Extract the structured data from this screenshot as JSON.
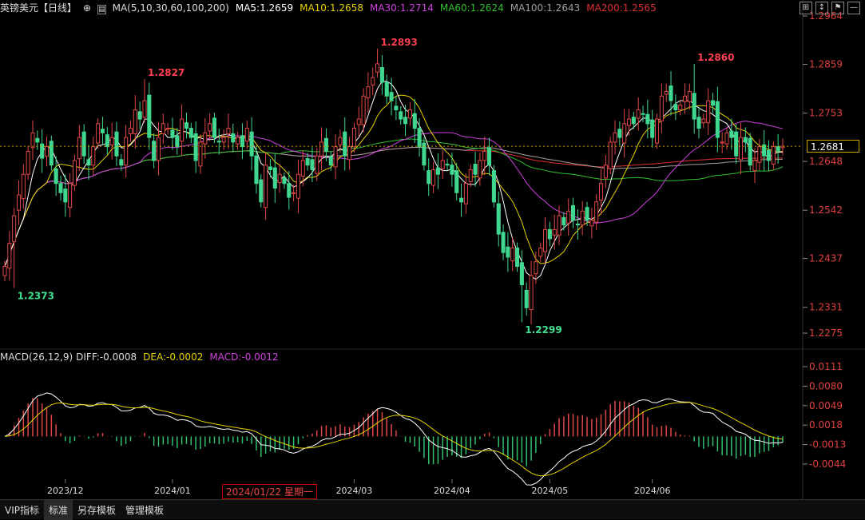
{
  "header": {
    "symbol": "英镑美元",
    "period": "【日线】",
    "ma_label": "MA(5,10,30,60,100,200)",
    "ma_values": [
      {
        "name": "MA5",
        "text": "MA5:1.2659",
        "color": "#ffffff"
      },
      {
        "name": "MA10",
        "text": "MA10:1.2658",
        "color": "#e6d200"
      },
      {
        "name": "MA30",
        "text": "MA30:1.2714",
        "color": "#d040e0"
      },
      {
        "name": "MA60",
        "text": "MA60:1.2624",
        "color": "#30c030"
      },
      {
        "name": "MA100",
        "text": "MA100:1.2643",
        "color": "#a0a0a0"
      },
      {
        "name": "MA200",
        "text": "MA200:1.2565",
        "color": "#e03030"
      }
    ]
  },
  "macd_header": {
    "label": "MACD(26,12,9)",
    "diff": "DIFF:-0.0008",
    "dea": "DEA:-0.0002",
    "macd": "MACD:-0.0012"
  },
  "current_price": "1.2681",
  "cursor_date": "2024/01/22 星期一",
  "tabs": [
    "VIP指标",
    "标准",
    "另存模板",
    "管理模板"
  ],
  "chart_data": {
    "type": "candlestick",
    "price_ticks": [
      "1.2964",
      "1.2859",
      "1.2753",
      "1.2648",
      "1.2542",
      "1.2437",
      "1.2331",
      "1.2275"
    ],
    "price_tick_values": [
      1.2964,
      1.2859,
      1.2753,
      1.2648,
      1.2542,
      1.2437,
      1.2331,
      1.2275
    ],
    "macd_ticks": [
      "0.0111",
      "0.0080",
      "0.0049",
      "0.0018",
      "-0.0013",
      "-0.0044"
    ],
    "macd_tick_values": [
      0.0111,
      0.008,
      0.0049,
      0.0018,
      -0.0013,
      -0.0044
    ],
    "x_labels": [
      "2023/12",
      "2024/01",
      "2024/03",
      "2024/04",
      "2024/05",
      "2024/06"
    ],
    "x_label_positions": [
      13,
      36,
      75,
      96,
      117,
      139
    ],
    "annotations": [
      {
        "index": 2,
        "text": "1.2373",
        "kind": "low"
      },
      {
        "index": 30,
        "text": "1.2827",
        "kind": "high"
      },
      {
        "index": 80,
        "text": "1.2893",
        "kind": "high"
      },
      {
        "index": 111,
        "text": "1.2299",
        "kind": "low"
      },
      {
        "index": 148,
        "text": "1.2860",
        "kind": "high"
      }
    ],
    "closes": [
      1.242,
      1.247,
      1.253,
      1.2575,
      1.262,
      1.267,
      1.271,
      1.269,
      1.2655,
      1.268,
      1.264,
      1.26,
      1.258,
      1.256,
      1.26,
      1.265,
      1.27,
      1.266,
      1.264,
      1.268,
      1.273,
      1.271,
      1.268,
      1.27,
      1.266,
      1.264,
      1.27,
      1.272,
      1.276,
      1.274,
      1.278,
      1.27,
      1.265,
      1.27,
      1.273,
      1.272,
      1.27,
      1.268,
      1.274,
      1.272,
      1.27,
      1.265,
      1.269,
      1.271,
      1.273,
      1.27,
      1.269,
      1.27,
      1.272,
      1.269,
      1.27,
      1.268,
      1.272,
      1.266,
      1.26,
      1.256,
      1.264,
      1.263,
      1.259,
      1.262,
      1.26,
      1.257,
      1.258,
      1.262,
      1.265,
      1.264,
      1.263,
      1.266,
      1.269,
      1.267,
      1.264,
      1.268,
      1.27,
      1.266,
      1.268,
      1.272,
      1.274,
      1.279,
      1.281,
      1.283,
      1.286,
      1.282,
      1.279,
      1.278,
      1.276,
      1.274,
      1.273,
      1.276,
      1.272,
      1.268,
      1.264,
      1.26,
      1.263,
      1.262,
      1.265,
      1.264,
      1.262,
      1.258,
      1.256,
      1.26,
      1.263,
      1.262,
      1.265,
      1.267,
      1.264,
      1.256,
      1.249,
      1.245,
      1.244,
      1.246,
      1.242,
      1.238,
      1.233,
      1.24,
      1.243,
      1.246,
      1.25,
      1.248,
      1.25,
      1.253,
      1.251,
      1.254,
      1.252,
      1.251,
      1.254,
      1.252,
      1.252,
      1.256,
      1.26,
      1.264,
      1.269,
      1.271,
      1.27,
      1.273,
      1.274,
      1.273,
      1.276,
      1.275,
      1.273,
      1.27,
      1.274,
      1.279,
      1.28,
      1.278,
      1.276,
      1.277,
      1.279,
      1.28,
      1.274,
      1.272,
      1.274,
      1.278,
      1.277,
      1.27,
      1.269,
      1.271,
      1.27,
      1.266,
      1.27,
      1.269,
      1.264,
      1.265,
      1.268,
      1.266,
      1.265,
      1.268,
      1.267,
      1.2681
    ]
  }
}
